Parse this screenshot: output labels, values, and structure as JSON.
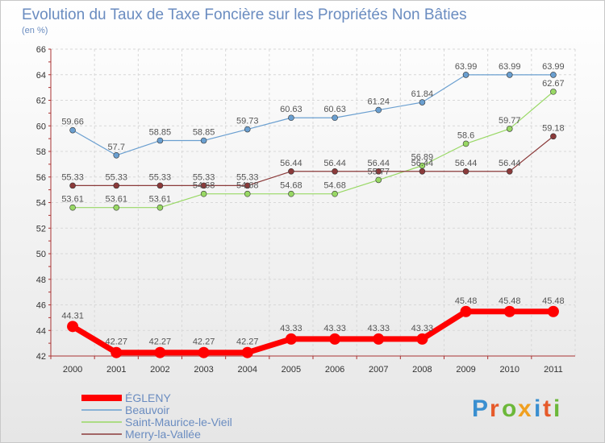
{
  "title": "Evolution du Taux de Taxe Foncière sur les Propriétés Non Bâties",
  "subtitle": "(en %)",
  "logo": {
    "letters": [
      "P",
      "r",
      "o",
      "x",
      "i",
      "t",
      "i"
    ],
    "colors": [
      "#3a8fd0",
      "#e65a2a",
      "#6cb83a",
      "#f0a020",
      "#3a8fd0",
      "#e65a2a",
      "#6cb83a"
    ]
  },
  "chart_data": {
    "type": "line",
    "x": [
      "2000",
      "2001",
      "2002",
      "2003",
      "2004",
      "2005",
      "2006",
      "2007",
      "2008",
      "2009",
      "2010",
      "2011"
    ],
    "ylim": [
      42,
      66
    ],
    "yticks": [
      "42",
      "44",
      "46",
      "48",
      "50",
      "52",
      "54",
      "56",
      "58",
      "60",
      "62",
      "64",
      "66"
    ],
    "grid": true,
    "legend_position": "bottom-left",
    "series": [
      {
        "name": "ÉGLENY",
        "color": "#ff0000",
        "width": 7,
        "marker": 7,
        "values": [
          44.31,
          42.27,
          42.27,
          42.27,
          42.27,
          43.33,
          43.33,
          43.33,
          43.33,
          45.48,
          45.48,
          45.48
        ],
        "labels": [
          "44.31",
          "42.27",
          "42.27",
          "42.27",
          "42.27",
          "43.33",
          "43.33",
          "43.33",
          "43.33",
          "45.48",
          "45.48",
          "45.48"
        ]
      },
      {
        "name": "Beauvoir",
        "color": "#6a9fd0",
        "width": 1.2,
        "marker": 3.5,
        "values": [
          59.66,
          57.7,
          58.85,
          58.85,
          59.73,
          60.63,
          60.63,
          61.24,
          61.84,
          63.99,
          63.99,
          63.99
        ],
        "labels": [
          "59.66",
          "57.7",
          "58.85",
          "58.85",
          "59.73",
          "60.63",
          "60.63",
          "61.24",
          "61.84",
          "63.99",
          "63.99",
          "63.99"
        ]
      },
      {
        "name": "Saint-Maurice-le-Vieil",
        "color": "#98d864",
        "width": 1.2,
        "marker": 3.5,
        "values": [
          53.61,
          53.61,
          53.61,
          54.68,
          54.68,
          54.68,
          54.68,
          55.77,
          56.89,
          58.6,
          59.77,
          62.67
        ],
        "labels": [
          "53.61",
          "53.61",
          "53.61",
          "54.68",
          "54.68",
          "54.68",
          "54.68",
          "55.77",
          "56.89",
          "58.6",
          "59.77",
          "62.67"
        ]
      },
      {
        "name": "Merry-la-Vallée",
        "color": "#8b3a3a",
        "width": 1.2,
        "marker": 3.5,
        "values": [
          55.33,
          55.33,
          55.33,
          55.33,
          55.33,
          56.44,
          56.44,
          56.44,
          56.44,
          56.44,
          56.44,
          59.18
        ],
        "labels": [
          "55.33",
          "55.33",
          "55.33",
          "55.33",
          "55.33",
          "56.44",
          "56.44",
          "56.44",
          "56.44",
          "56.44",
          "56.44",
          "59.18"
        ]
      }
    ]
  }
}
